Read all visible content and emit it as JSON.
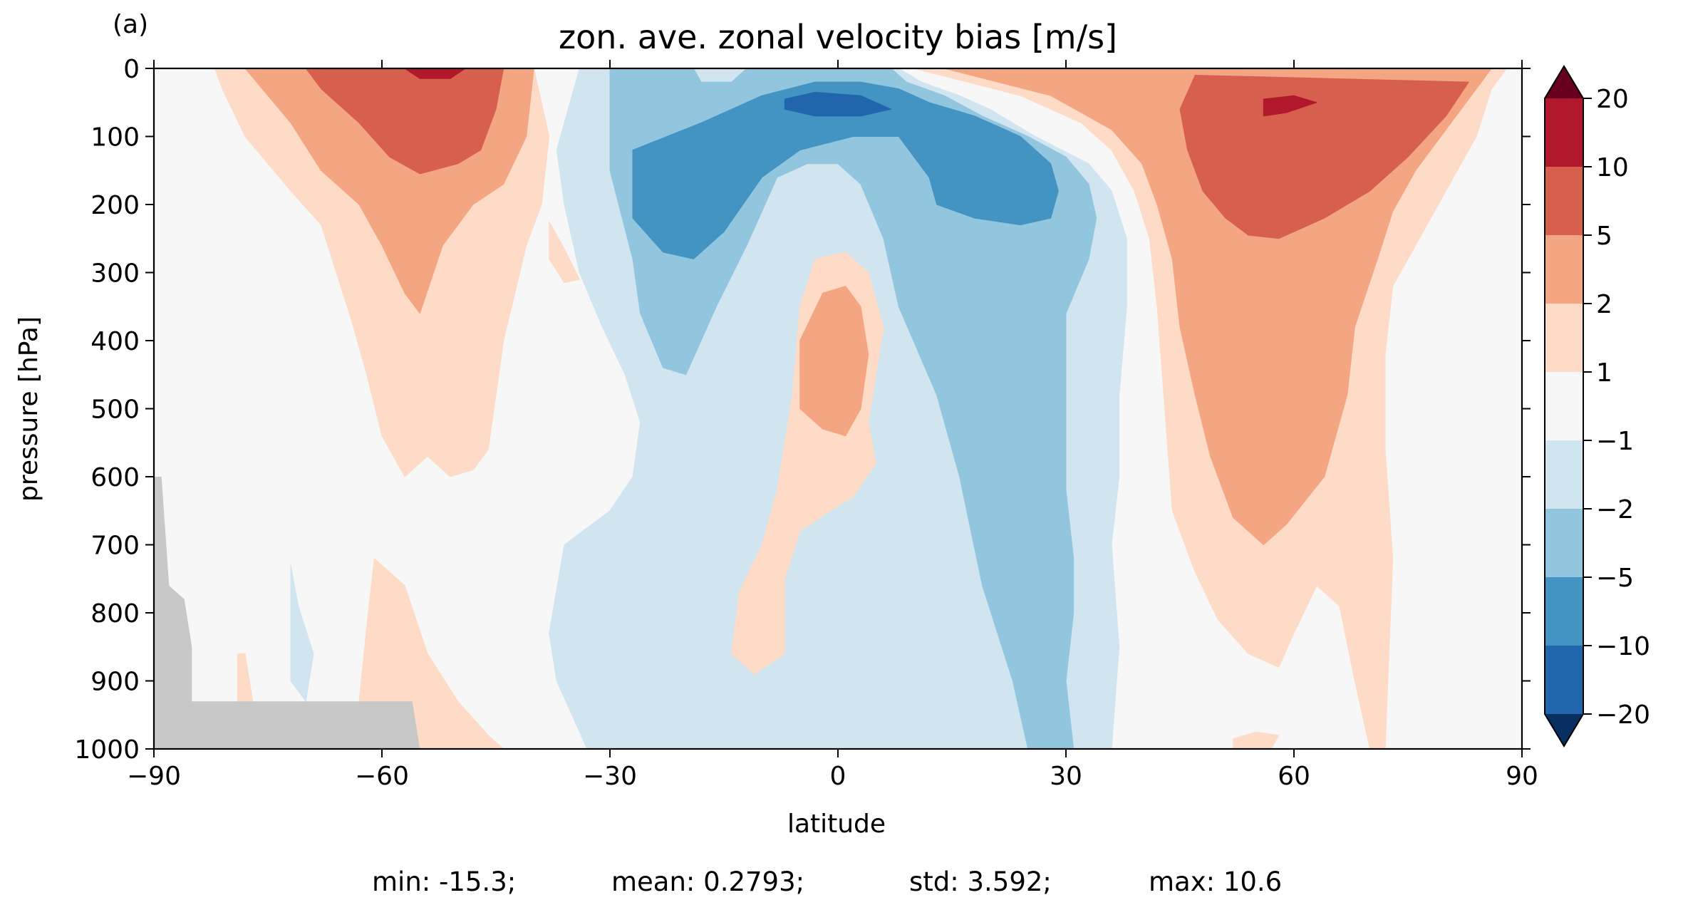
{
  "panel_label": "(a)",
  "title": "zon. ave. zonal velocity bias [m/s]",
  "xlabel": "latitude",
  "ylabel": "pressure [hPa]",
  "stats": {
    "min": "min: -15.3;",
    "mean": "mean: 0.2793;",
    "std": "std: 3.592;",
    "max": "max: 10.6"
  },
  "chart_data": {
    "type": "heatmap",
    "subtype": "filled-contour",
    "title": "zon. ave. zonal velocity bias [m/s]",
    "xlabel": "latitude",
    "ylabel": "pressure [hPa]",
    "xlim": [
      -90,
      90
    ],
    "ylim": [
      1000,
      0
    ],
    "xticks": [
      -90,
      -60,
      -30,
      0,
      30,
      60,
      90
    ],
    "xtick_labels": [
      "−90",
      "−60",
      "−30",
      "0",
      "30",
      "60",
      "90"
    ],
    "yticks": [
      0,
      100,
      200,
      300,
      400,
      500,
      600,
      700,
      800,
      900,
      1000
    ],
    "ytick_labels": [
      "0",
      "100",
      "200",
      "300",
      "400",
      "500",
      "600",
      "700",
      "800",
      "900",
      "1000"
    ],
    "colorbar": {
      "boundaries": [
        -20,
        -10,
        -5,
        -2,
        -1,
        1,
        2,
        5,
        10,
        20
      ],
      "tick_labels": [
        "−20",
        "−10",
        "−5",
        "−2",
        "−1",
        "1",
        "2",
        "5",
        "10",
        "20"
      ],
      "colors": [
        "#2166ac",
        "#4393c3",
        "#92c5de",
        "#d1e5f0",
        "#f7f7f7",
        "#fddbc7",
        "#f4a582",
        "#d6604d",
        "#b2182b"
      ],
      "extend_min_color": "#053061",
      "extend_max_color": "#67001f"
    },
    "background_color": "#f7f7f7",
    "missing_color": "#c8c8c8",
    "regions": [
      {
        "level": "1 to 2",
        "color": "#fddbc7",
        "points": [
          [
            -82,
            0
          ],
          [
            -40,
            0
          ],
          [
            -38,
            100
          ],
          [
            -39,
            200
          ],
          [
            -41,
            260
          ],
          [
            -44,
            400
          ],
          [
            -46,
            560
          ],
          [
            -48,
            590
          ],
          [
            -51,
            600
          ],
          [
            -54,
            570
          ],
          [
            -57,
            600
          ],
          [
            -60,
            540
          ],
          [
            -62,
            450
          ],
          [
            -64,
            370
          ],
          [
            -66,
            300
          ],
          [
            -68,
            230
          ],
          [
            -72,
            180
          ],
          [
            -78,
            100
          ],
          [
            -81,
            30
          ]
        ]
      },
      {
        "level": "2 to 5",
        "color": "#f4a582",
        "points": [
          [
            -78,
            0
          ],
          [
            -40,
            0
          ],
          [
            -41,
            100
          ],
          [
            -44,
            170
          ],
          [
            -48,
            200
          ],
          [
            -52,
            260
          ],
          [
            -55,
            360
          ],
          [
            -57,
            330
          ],
          [
            -60,
            260
          ],
          [
            -63,
            200
          ],
          [
            -68,
            150
          ],
          [
            -72,
            80
          ],
          [
            -75,
            40
          ]
        ]
      },
      {
        "level": "5 to 10",
        "color": "#d6604d",
        "points": [
          [
            -70,
            0
          ],
          [
            -44,
            0
          ],
          [
            -45,
            60
          ],
          [
            -47,
            120
          ],
          [
            -50,
            140
          ],
          [
            -55,
            155
          ],
          [
            -59,
            130
          ],
          [
            -63,
            80
          ],
          [
            -68,
            30
          ]
        ]
      },
      {
        "level": "10 to 20",
        "color": "#b2182b",
        "points": [
          [
            -57,
            0
          ],
          [
            -49,
            0
          ],
          [
            -51,
            15
          ],
          [
            -55,
            15
          ]
        ]
      },
      {
        "level": "1 to 2",
        "color": "#fddbc7",
        "points": [
          [
            -38,
            225
          ],
          [
            -36,
            265
          ],
          [
            -34,
            310
          ],
          [
            -36,
            315
          ],
          [
            -38,
            280
          ]
        ]
      },
      {
        "level": "1 to 2",
        "color": "#fddbc7",
        "points": [
          [
            -61,
            720
          ],
          [
            -57,
            760
          ],
          [
            -54,
            860
          ],
          [
            -50,
            930
          ],
          [
            -46,
            980
          ],
          [
            -44,
            1000
          ],
          [
            -60,
            1000
          ],
          [
            -63,
            930
          ],
          [
            -62,
            820
          ]
        ]
      },
      {
        "level": "1 to 2",
        "color": "#fddbc7",
        "points": [
          [
            -79,
            860
          ],
          [
            -78,
            860
          ],
          [
            -77,
            930
          ],
          [
            -79,
            930
          ]
        ]
      },
      {
        "level": "-1 to -2",
        "color": "#d1e5f0",
        "points": [
          [
            -72,
            730
          ],
          [
            -71,
            790
          ],
          [
            -69,
            860
          ],
          [
            -70,
            930
          ],
          [
            -72,
            900
          ]
        ]
      },
      {
        "level": "-1 to -2",
        "color": "#d1e5f0",
        "points": [
          [
            -34,
            0
          ],
          [
            8,
            0
          ],
          [
            11,
            20
          ],
          [
            16,
            40
          ],
          [
            20,
            60
          ],
          [
            26,
            100
          ],
          [
            33,
            140
          ],
          [
            36,
            180
          ],
          [
            38,
            250
          ],
          [
            38,
            350
          ],
          [
            37,
            480
          ],
          [
            37,
            600
          ],
          [
            36,
            700
          ],
          [
            37,
            850
          ],
          [
            36,
            1000
          ],
          [
            -33,
            1000
          ],
          [
            -37,
            900
          ],
          [
            -38,
            830
          ],
          [
            -36,
            700
          ],
          [
            -30,
            650
          ],
          [
            -27,
            600
          ],
          [
            -26,
            520
          ],
          [
            -28,
            450
          ],
          [
            -31,
            380
          ],
          [
            -34,
            300
          ],
          [
            -36,
            200
          ],
          [
            -37,
            120
          ]
        ]
      },
      {
        "level": "-2 to -5",
        "color": "#92c5de",
        "points": [
          [
            -30,
            0
          ],
          [
            -19,
            0
          ],
          [
            -18,
            20
          ],
          [
            -14,
            20
          ],
          [
            -12,
            0
          ],
          [
            7,
            0
          ],
          [
            9,
            20
          ],
          [
            14,
            40
          ],
          [
            19,
            70
          ],
          [
            25,
            100
          ],
          [
            30,
            130
          ],
          [
            33,
            170
          ],
          [
            34,
            220
          ],
          [
            33,
            280
          ],
          [
            30,
            360
          ],
          [
            30,
            480
          ],
          [
            30,
            620
          ],
          [
            31,
            720
          ],
          [
            31,
            800
          ],
          [
            30,
            900
          ],
          [
            31,
            1000
          ],
          [
            25,
            1000
          ],
          [
            23,
            900
          ],
          [
            19,
            760
          ],
          [
            16,
            600
          ],
          [
            13,
            480
          ],
          [
            8,
            350
          ],
          [
            6,
            250
          ],
          [
            3,
            170
          ],
          [
            0,
            140
          ],
          [
            -4,
            140
          ],
          [
            -8,
            160
          ],
          [
            -12,
            260
          ],
          [
            -16,
            350
          ],
          [
            -20,
            450
          ],
          [
            -23,
            440
          ],
          [
            -26,
            360
          ],
          [
            -27,
            280
          ],
          [
            -30,
            150
          ],
          [
            -30,
            50
          ]
        ]
      },
      {
        "level": "-5 to -10",
        "color": "#4393c3",
        "points": [
          [
            -27,
            120
          ],
          [
            -18,
            80
          ],
          [
            -10,
            40
          ],
          [
            -3,
            20
          ],
          [
            3,
            20
          ],
          [
            8,
            30
          ],
          [
            12,
            50
          ],
          [
            18,
            70
          ],
          [
            24,
            100
          ],
          [
            28,
            140
          ],
          [
            29,
            180
          ],
          [
            28,
            220
          ],
          [
            24,
            230
          ],
          [
            18,
            220
          ],
          [
            13,
            200
          ],
          [
            12,
            160
          ],
          [
            8,
            100
          ],
          [
            2,
            100
          ],
          [
            -5,
            120
          ],
          [
            -10,
            160
          ],
          [
            -15,
            240
          ],
          [
            -19,
            280
          ],
          [
            -23,
            270
          ],
          [
            -27,
            220
          ]
        ]
      },
      {
        "level": "-10 to -20",
        "color": "#2166ac",
        "points": [
          [
            -7,
            45
          ],
          [
            -3,
            35
          ],
          [
            3,
            40
          ],
          [
            7,
            60
          ],
          [
            3,
            70
          ],
          [
            -3,
            70
          ],
          [
            -7,
            60
          ]
        ]
      },
      {
        "level": "-1 to -2",
        "color": "#d1e5f0",
        "points": [
          [
            -2,
            880
          ],
          [
            1,
            845
          ],
          [
            4,
            860
          ],
          [
            6,
            920
          ],
          [
            4,
            990
          ],
          [
            0,
            1000
          ],
          [
            -3,
            960
          ],
          [
            -2,
            920
          ]
        ]
      },
      {
        "level": "1 to 2",
        "color": "#fddbc7",
        "points": [
          [
            -3,
            280
          ],
          [
            1,
            270
          ],
          [
            4,
            300
          ],
          [
            6,
            380
          ],
          [
            5,
            450
          ],
          [
            4,
            520
          ],
          [
            5,
            580
          ],
          [
            2,
            630
          ],
          [
            -1,
            650
          ],
          [
            -5,
            680
          ],
          [
            -7,
            750
          ],
          [
            -7,
            860
          ],
          [
            -11,
            890
          ],
          [
            -14,
            860
          ],
          [
            -13,
            770
          ],
          [
            -10,
            700
          ],
          [
            -8,
            620
          ],
          [
            -6,
            480
          ],
          [
            -5,
            350
          ]
        ]
      },
      {
        "level": "2 to 5",
        "color": "#f4a582",
        "points": [
          [
            -2,
            330
          ],
          [
            1,
            320
          ],
          [
            3,
            350
          ],
          [
            4,
            420
          ],
          [
            3,
            500
          ],
          [
            1,
            540
          ],
          [
            -2,
            530
          ],
          [
            -5,
            500
          ],
          [
            -5,
            400
          ]
        ]
      },
      {
        "level": "1 to 2",
        "color": "#fddbc7",
        "points": [
          [
            10,
            0
          ],
          [
            88,
            0
          ],
          [
            86,
            30
          ],
          [
            84,
            100
          ],
          [
            80,
            180
          ],
          [
            76,
            260
          ],
          [
            73,
            320
          ],
          [
            72,
            420
          ],
          [
            72,
            560
          ],
          [
            73,
            720
          ],
          [
            72,
            1000
          ],
          [
            70,
            1000
          ],
          [
            68,
            900
          ],
          [
            66,
            790
          ],
          [
            63,
            760
          ],
          [
            60,
            830
          ],
          [
            58,
            880
          ],
          [
            54,
            860
          ],
          [
            50,
            810
          ],
          [
            47,
            740
          ],
          [
            44,
            650
          ],
          [
            43,
            500
          ],
          [
            42,
            350
          ],
          [
            41,
            250
          ],
          [
            39,
            180
          ],
          [
            36,
            120
          ],
          [
            32,
            80
          ],
          [
            24,
            40
          ]
        ]
      },
      {
        "level": "2 to 5",
        "color": "#f4a582",
        "points": [
          [
            14,
            0
          ],
          [
            86,
            0
          ],
          [
            84,
            30
          ],
          [
            80,
            90
          ],
          [
            76,
            150
          ],
          [
            73,
            210
          ],
          [
            71,
            280
          ],
          [
            68,
            380
          ],
          [
            67,
            480
          ],
          [
            64,
            600
          ],
          [
            59,
            670
          ],
          [
            56,
            700
          ],
          [
            52,
            660
          ],
          [
            49,
            570
          ],
          [
            47,
            480
          ],
          [
            45,
            380
          ],
          [
            44,
            280
          ],
          [
            42,
            200
          ],
          [
            40,
            140
          ],
          [
            36,
            90
          ],
          [
            28,
            40
          ]
        ]
      },
      {
        "level": "5 to 10",
        "color": "#d6604d",
        "points": [
          [
            47,
            10
          ],
          [
            83,
            20
          ],
          [
            80,
            70
          ],
          [
            75,
            130
          ],
          [
            70,
            180
          ],
          [
            64,
            220
          ],
          [
            58,
            250
          ],
          [
            54,
            245
          ],
          [
            51,
            220
          ],
          [
            48,
            180
          ],
          [
            46,
            120
          ],
          [
            45,
            60
          ]
        ]
      },
      {
        "level": "10 to 20",
        "color": "#b2182b",
        "points": [
          [
            56,
            45
          ],
          [
            60,
            40
          ],
          [
            63,
            50
          ],
          [
            59,
            65
          ],
          [
            56,
            70
          ]
        ]
      },
      {
        "level": "1 to 2",
        "color": "#fddbc7",
        "points": [
          [
            52,
            985
          ],
          [
            55,
            975
          ],
          [
            58,
            980
          ],
          [
            57,
            1000
          ],
          [
            52,
            1000
          ]
        ]
      }
    ],
    "missing_region": [
      [
        -90,
        600
      ],
      [
        -89,
        600
      ],
      [
        -88,
        760
      ],
      [
        -86,
        780
      ],
      [
        -85,
        850
      ],
      [
        -85,
        930
      ],
      [
        -56,
        930
      ],
      [
        -55,
        1000
      ],
      [
        -90,
        1000
      ]
    ]
  }
}
